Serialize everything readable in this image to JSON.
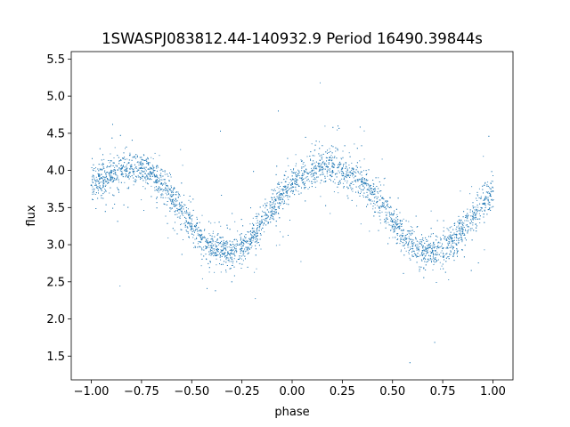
{
  "chart_data": {
    "type": "scatter",
    "title": "1SWASPJ083812.44-140932.9 Period 16490.39844s",
    "xlabel": "phase",
    "ylabel": "flux",
    "xlim": [
      -1.1,
      1.1
    ],
    "ylim": [
      1.18,
      5.6
    ],
    "xticks": [
      -1.0,
      -0.75,
      -0.5,
      -0.25,
      0.0,
      0.25,
      0.5,
      0.75,
      1.0
    ],
    "xtick_labels": [
      "−1.00",
      "−0.75",
      "−0.50",
      "−0.25",
      "0.00",
      "0.25",
      "0.50",
      "0.75",
      "1.00"
    ],
    "yticks": [
      1.5,
      2.0,
      2.5,
      3.0,
      3.5,
      4.0,
      4.5,
      5.0,
      5.5
    ],
    "ytick_labels": [
      "1.5",
      "2.0",
      "2.5",
      "3.0",
      "3.5",
      "4.0",
      "4.5",
      "5.0",
      "5.5"
    ],
    "grid": false,
    "marker_color": "#1f77b4",
    "series": [
      {
        "x": [
          -1.0,
          -0.95,
          -0.9,
          -0.85,
          -0.8,
          -0.75,
          -0.7,
          -0.65,
          -0.6,
          -0.55,
          -0.5,
          -0.45,
          -0.4,
          -0.35,
          -0.3,
          -0.25,
          -0.2,
          -0.15,
          -0.1,
          -0.05,
          0.0,
          0.05,
          0.1,
          0.15,
          0.2,
          0.25,
          0.3,
          0.35,
          0.4,
          0.45,
          0.5,
          0.55,
          0.6,
          0.65,
          0.7,
          0.75,
          0.8,
          0.85,
          0.9,
          0.95,
          1.0
        ],
        "y": [
          3.8,
          3.9,
          3.97,
          4.02,
          4.05,
          4.03,
          3.95,
          3.82,
          3.65,
          3.45,
          3.25,
          3.07,
          2.96,
          2.92,
          2.92,
          2.95,
          3.1,
          3.3,
          3.5,
          3.68,
          3.82,
          3.93,
          4.0,
          4.04,
          4.05,
          4.03,
          3.96,
          3.85,
          3.7,
          3.52,
          3.32,
          3.12,
          2.98,
          2.92,
          2.92,
          2.95,
          3.05,
          3.2,
          3.38,
          3.55,
          3.72
        ]
      }
    ]
  }
}
